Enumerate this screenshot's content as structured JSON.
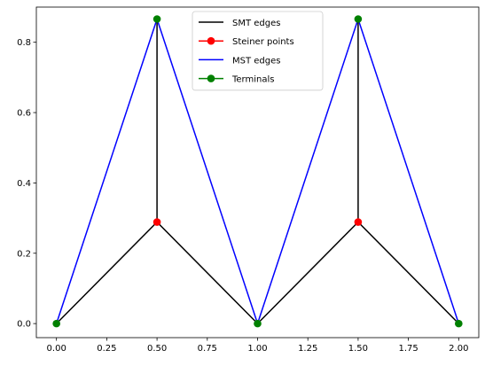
{
  "chart_data": {
    "type": "line",
    "title": "",
    "xlabel": "",
    "ylabel": "",
    "xlim": [
      -0.1,
      2.1
    ],
    "ylim": [
      -0.04,
      0.9
    ],
    "grid": false,
    "legend_position": "upper-center",
    "x_ticks": [
      {
        "value": 0.0,
        "label": "0.00"
      },
      {
        "value": 0.25,
        "label": "0.25"
      },
      {
        "value": 0.5,
        "label": "0.50"
      },
      {
        "value": 0.75,
        "label": "0.75"
      },
      {
        "value": 1.0,
        "label": "1.00"
      },
      {
        "value": 1.25,
        "label": "1.25"
      },
      {
        "value": 1.5,
        "label": "1.50"
      },
      {
        "value": 1.75,
        "label": "1.75"
      },
      {
        "value": 2.0,
        "label": "2.00"
      }
    ],
    "y_ticks": [
      {
        "value": 0.0,
        "label": "0.0"
      },
      {
        "value": 0.2,
        "label": "0.2"
      },
      {
        "value": 0.4,
        "label": "0.4"
      },
      {
        "value": 0.6,
        "label": "0.6"
      },
      {
        "value": 0.8,
        "label": "0.8"
      }
    ],
    "series": [
      {
        "name": "SMT edges",
        "kind": "segments",
        "color": "#000000",
        "segments": [
          [
            [
              0.0,
              0.0
            ],
            [
              0.5,
              0.2887
            ]
          ],
          [
            [
              0.5,
              0.2887
            ],
            [
              0.5,
              0.866
            ]
          ],
          [
            [
              0.5,
              0.2887
            ],
            [
              1.0,
              0.0
            ]
          ],
          [
            [
              1.0,
              0.0
            ],
            [
              1.5,
              0.2887
            ]
          ],
          [
            [
              1.5,
              0.2887
            ],
            [
              1.5,
              0.866
            ]
          ],
          [
            [
              1.5,
              0.2887
            ],
            [
              2.0,
              0.0
            ]
          ]
        ]
      },
      {
        "name": "Steiner points",
        "kind": "points",
        "color": "#ff0000",
        "points": [
          [
            0.5,
            0.2887
          ],
          [
            1.5,
            0.2887
          ]
        ]
      },
      {
        "name": "MST edges",
        "kind": "segments",
        "color": "#0000ff",
        "segments": [
          [
            [
              0.0,
              0.0
            ],
            [
              0.5,
              0.866
            ]
          ],
          [
            [
              0.5,
              0.866
            ],
            [
              1.0,
              0.0
            ]
          ],
          [
            [
              1.0,
              0.0
            ],
            [
              1.5,
              0.866
            ]
          ],
          [
            [
              1.5,
              0.866
            ],
            [
              2.0,
              0.0
            ]
          ]
        ]
      },
      {
        "name": "Terminals",
        "kind": "points",
        "color": "#008000",
        "points": [
          [
            0.0,
            0.0
          ],
          [
            0.5,
            0.866
          ],
          [
            1.0,
            0.0
          ],
          [
            1.5,
            0.866
          ],
          [
            2.0,
            0.0
          ]
        ]
      }
    ]
  }
}
